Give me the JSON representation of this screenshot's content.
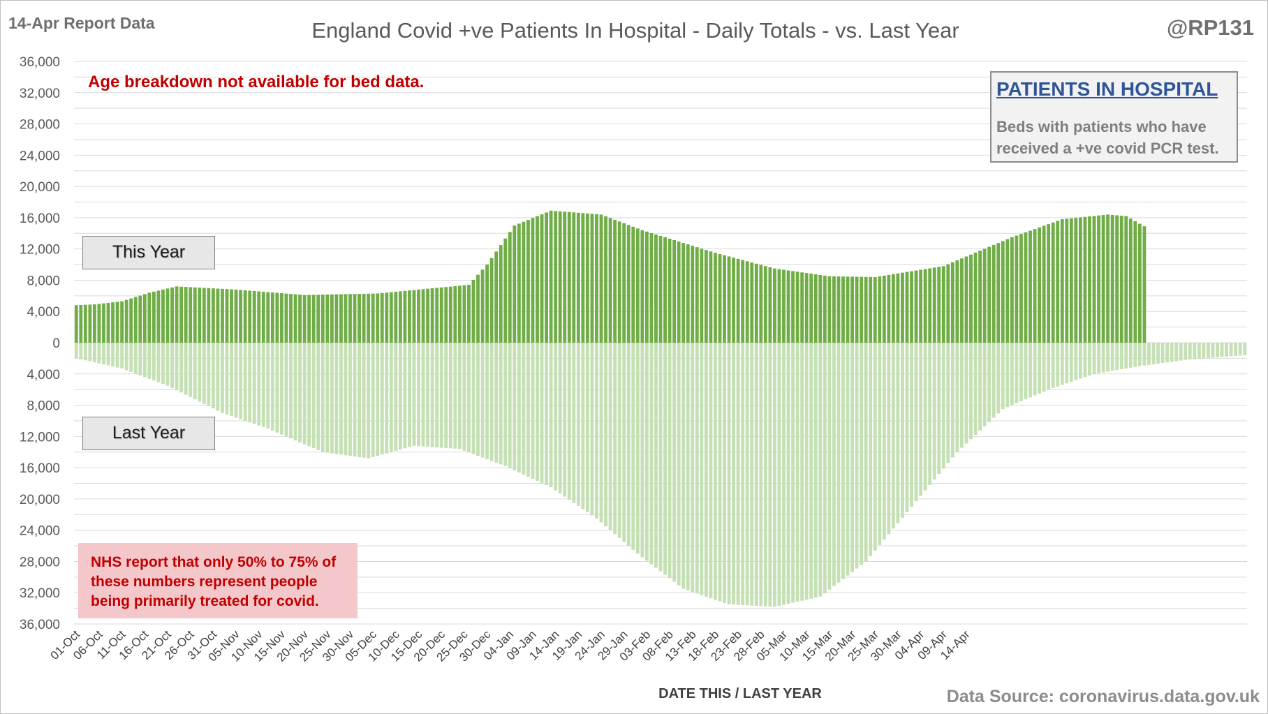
{
  "header": {
    "report_tag": "14-Apr Report Data",
    "title": "England Covid +ve Patients In Hospital - Daily Totals - vs. Last Year",
    "handle": "@RP131"
  },
  "notes": {
    "age": "Age breakdown not available for bed data.",
    "nhs": "NHS report that only 50% to 75% of these numbers represent people being primarily treated for covid."
  },
  "legend": {
    "heading": "PATIENTS IN HOSPITAL",
    "description": "Beds with patients who have received a +ve covid PCR test."
  },
  "series_labels": {
    "this_year": "This Year",
    "last_year": "Last Year"
  },
  "footer": {
    "source": "Data Source: coronavirus.data.gov.uk"
  },
  "colors": {
    "this_year": "#70ad47",
    "last_year": "#c5e0b4",
    "grid": "#d9d9d9"
  },
  "chart_data": {
    "type": "bar",
    "title": "England Covid +ve Patients In Hospital - Daily Totals - vs. Last Year",
    "xlabel": "DATE THIS / LAST YEAR",
    "ylabel": "",
    "ylim": [
      -36000,
      36000
    ],
    "y_ticks": [
      36000,
      32000,
      28000,
      24000,
      20000,
      16000,
      12000,
      8000,
      4000,
      0,
      -4000,
      -8000,
      -12000,
      -16000,
      -20000,
      -24000,
      -28000,
      -32000,
      -36000
    ],
    "y_tick_labels": [
      "36,000",
      "32,000",
      "28,000",
      "24,000",
      "20,000",
      "16,000",
      "12,000",
      "8,000",
      "4,000",
      "0",
      "4,000",
      "8,000",
      "12,000",
      "16,000",
      "20,000",
      "24,000",
      "28,000",
      "32,000",
      "36,000"
    ],
    "x_tick_labels": [
      "01-Oct",
      "06-Oct",
      "11-Oct",
      "16-Oct",
      "21-Oct",
      "26-Oct",
      "31-Oct",
      "05-Nov",
      "10-Nov",
      "15-Nov",
      "20-Nov",
      "25-Nov",
      "30-Nov",
      "05-Dec",
      "10-Dec",
      "15-Dec",
      "20-Dec",
      "25-Dec",
      "30-Dec",
      "04-Jan",
      "09-Jan",
      "14-Jan",
      "19-Jan",
      "24-Jan",
      "29-Jan",
      "03-Feb",
      "08-Feb",
      "13-Feb",
      "18-Feb",
      "23-Feb",
      "28-Feb",
      "05-Mar",
      "10-Mar",
      "15-Mar",
      "20-Mar",
      "25-Mar",
      "30-Mar",
      "04-Apr",
      "09-Apr",
      "14-Apr"
    ],
    "x_tick_every_days": 5,
    "legend": "none",
    "grid": true,
    "series": [
      {
        "name": "This Year",
        "anchors": [
          [
            0,
            4800
          ],
          [
            4,
            4900
          ],
          [
            10,
            5300
          ],
          [
            16,
            6400
          ],
          [
            22,
            7200
          ],
          [
            35,
            6800
          ],
          [
            50,
            6100
          ],
          [
            66,
            6300
          ],
          [
            75,
            6800
          ],
          [
            86,
            7400
          ],
          [
            90,
            10000
          ],
          [
            96,
            15000
          ],
          [
            104,
            16900
          ],
          [
            115,
            16400
          ],
          [
            124,
            14400
          ],
          [
            140,
            11500
          ],
          [
            153,
            9500
          ],
          [
            165,
            8500
          ],
          [
            175,
            8400
          ],
          [
            190,
            9800
          ],
          [
            205,
            13500
          ],
          [
            216,
            15800
          ],
          [
            226,
            16400
          ],
          [
            230,
            16200
          ],
          [
            234,
            14900
          ]
        ],
        "note": "daily values, linearly interpolated between anchor points (day index, patients)"
      },
      {
        "name": "Last Year",
        "anchors": [
          [
            0,
            -2000
          ],
          [
            10,
            -3300
          ],
          [
            20,
            -5500
          ],
          [
            32,
            -9000
          ],
          [
            42,
            -11000
          ],
          [
            54,
            -14000
          ],
          [
            64,
            -14800
          ],
          [
            74,
            -13200
          ],
          [
            84,
            -13600
          ],
          [
            94,
            -15800
          ],
          [
            104,
            -18500
          ],
          [
            114,
            -22500
          ],
          [
            123,
            -27000
          ],
          [
            133,
            -31500
          ],
          [
            143,
            -33500
          ],
          [
            153,
            -33800
          ],
          [
            163,
            -32500
          ],
          [
            173,
            -28000
          ],
          [
            183,
            -21000
          ],
          [
            193,
            -14000
          ],
          [
            203,
            -8500
          ],
          [
            213,
            -6000
          ],
          [
            223,
            -4000
          ],
          [
            233,
            -3000
          ],
          [
            243,
            -2200
          ],
          [
            256,
            -1600
          ]
        ],
        "note": "daily values, linearly interpolated between anchor points (day index, patients)"
      }
    ]
  }
}
